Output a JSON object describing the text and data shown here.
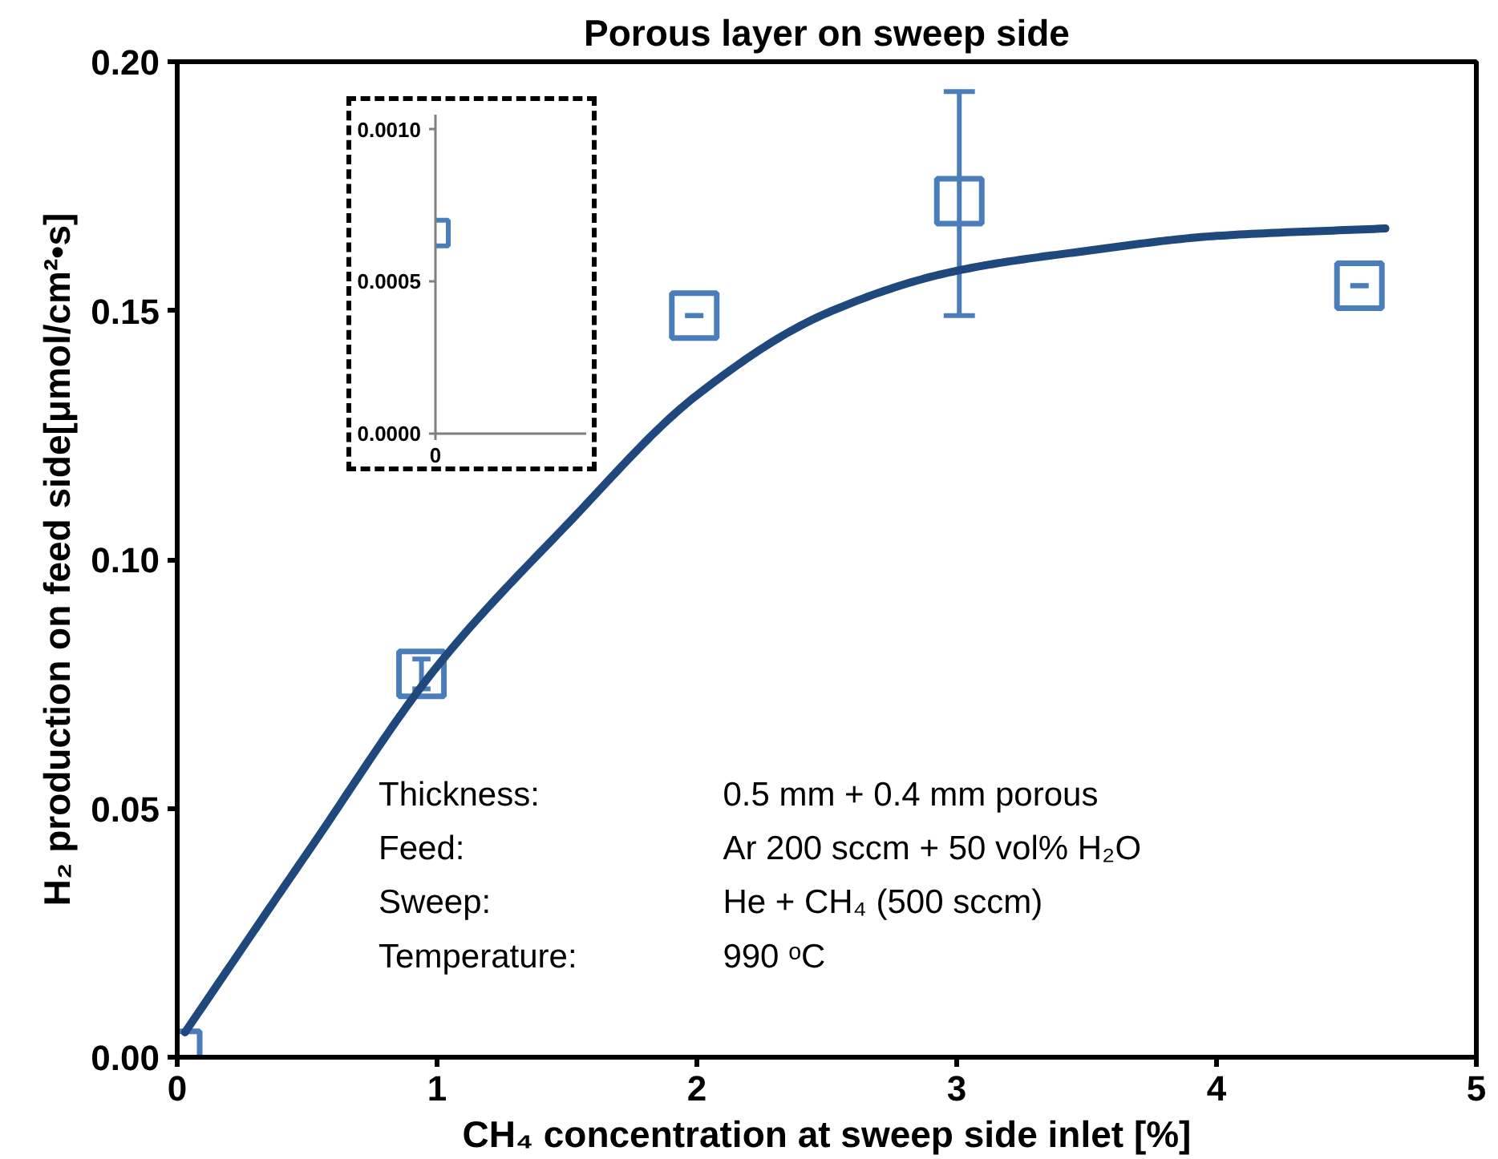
{
  "chart_data": [
    {
      "type": "scatter",
      "title": "Porous layer on sweep side",
      "xlabel": "CH₄ concentration at sweep side inlet [%]",
      "ylabel": "H₂ production on feed side[μmol/cm²•s]",
      "x": [
        0,
        0.94,
        1.99,
        3.01,
        4.55
      ],
      "xlim": [
        0,
        5
      ],
      "ylim": [
        0,
        0.2
      ],
      "xticks": [
        0,
        1,
        2,
        3,
        4,
        5
      ],
      "yticks": [
        {
          "value": 0,
          "label": "0.00"
        },
        {
          "value": 0.05,
          "label": "0.05"
        },
        {
          "value": 0.1,
          "label": "0.10"
        },
        {
          "value": 0.15,
          "label": "0.15"
        },
        {
          "value": 0.2,
          "label": "0.20"
        }
      ],
      "series": [
        {
          "marker": "square",
          "color": "#4a7ebb",
          "values": [
            0.0007,
            0.077,
            0.149,
            0.172,
            0.155
          ],
          "errors": [
            null,
            0.003,
            0,
            [
              0.149,
              0.194
            ],
            0
          ]
        },
        {
          "type": "line",
          "color": "#1f497d",
          "x": [
            0.03,
            0.5,
            1,
            1.5,
            2,
            2.5,
            3,
            3.5,
            4,
            4.65
          ],
          "values": [
            0.005,
            0.041,
            0.0785,
            0.107,
            0.133,
            0.1495,
            0.158,
            0.162,
            0.165,
            0.1665
          ],
          "line_style": "solid"
        }
      ],
      "annotations": [
        "Thickness:",
        "0.5 mm + 0.4 mm porous",
        "Feed:",
        "Ar 200 sccm + 50 vol% H₂O",
        "Sweep:",
        "He + CH₄ (500 sccm)",
        "Temperature:",
        "990 ᵒC"
      ]
    },
    {
      "type": "scatter",
      "categories": [
        "0"
      ],
      "values": [
        0.00066
      ],
      "color": "#4a7ebb",
      "marker": "square",
      "ylim": [
        0,
        0.00105
      ],
      "yticks": [
        {
          "value": 0,
          "label": "0.0000"
        },
        {
          "value": 0.0005,
          "label": "0.0005"
        },
        {
          "value": 0.001,
          "label": "0.0010"
        }
      ]
    }
  ]
}
